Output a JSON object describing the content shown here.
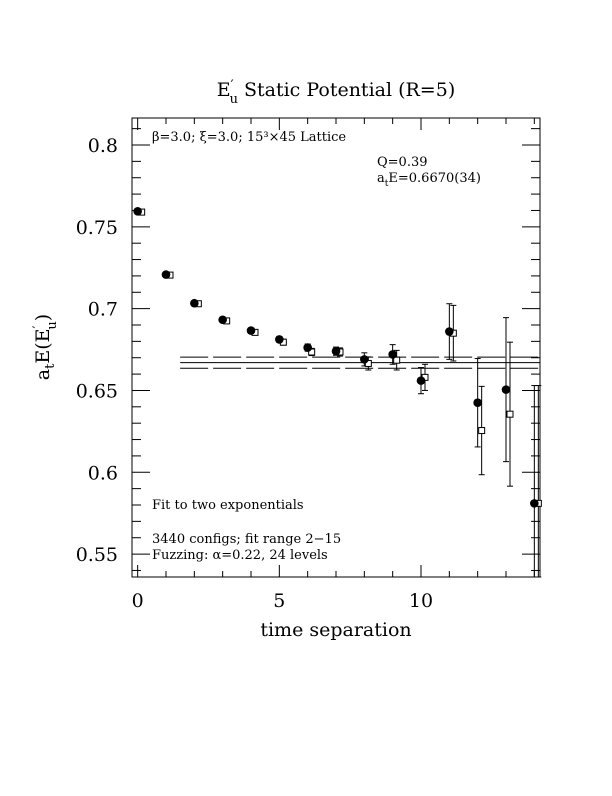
{
  "chart_data": {
    "type": "scatter",
    "title": {
      "main": "E",
      "sup": "′",
      "sub": "u",
      "rest": "  Static Potential (R=5)"
    },
    "xlabel": "time separation",
    "ylabel": {
      "base": "a",
      "sub_t": "t",
      "text": "E(E",
      "sup": "′",
      "sub_u": "u",
      "close": ")"
    },
    "xlim": [
      -0.2,
      14.2
    ],
    "ylim": [
      0.536,
      0.8165
    ],
    "x_ticks": [
      0,
      5,
      10
    ],
    "x_tick_labels": [
      "0",
      "5",
      "10"
    ],
    "y_ticks": [
      0.55,
      0.6,
      0.65,
      0.7,
      0.75,
      0.8
    ],
    "y_tick_labels": [
      "0.55",
      "0.6",
      "0.65",
      "0.7",
      "0.75",
      "0.8"
    ],
    "annotations": {
      "lattice": "β=3.0; ξ=3.0; 15³×45 Lattice",
      "q": "Q=0.39",
      "fit_result": {
        "base": "a",
        "sub": "t",
        "rest": "E=0.6670(34)"
      },
      "fit_type": "Fit to two exponentials",
      "configs": "3440 configs; fit range 2−15",
      "fuzzing": "Fuzzing: α=0.22, 24 levels"
    },
    "fit": {
      "central": 0.667,
      "error": 0.0034,
      "x_range": [
        1.5,
        14.2
      ]
    },
    "series": [
      {
        "marker": "filled-circle",
        "points": [
          {
            "x": 0,
            "y": 0.7595,
            "err": 0.001
          },
          {
            "x": 1,
            "y": 0.7208,
            "err": 0.001
          },
          {
            "x": 2,
            "y": 0.7033,
            "err": 0.001
          },
          {
            "x": 3,
            "y": 0.6932,
            "err": 0.0012
          },
          {
            "x": 4,
            "y": 0.6866,
            "err": 0.0015
          },
          {
            "x": 5,
            "y": 0.6812,
            "err": 0.0018
          },
          {
            "x": 6,
            "y": 0.6762,
            "err": 0.0022
          },
          {
            "x": 7,
            "y": 0.674,
            "err": 0.0025
          },
          {
            "x": 8,
            "y": 0.669,
            "err": 0.004
          },
          {
            "x": 9,
            "y": 0.672,
            "err": 0.006
          },
          {
            "x": 10,
            "y": 0.656,
            "err": 0.008
          },
          {
            "x": 11,
            "y": 0.686,
            "err": 0.017
          },
          {
            "x": 12,
            "y": 0.6425,
            "err": 0.027
          },
          {
            "x": 13,
            "y": 0.6505,
            "err": 0.044
          },
          {
            "x": 14,
            "y": 0.581,
            "err": 0.072
          }
        ]
      },
      {
        "marker": "open-square",
        "points": [
          {
            "x": 0,
            "y": 0.759,
            "err": 0.001
          },
          {
            "x": 1,
            "y": 0.7205,
            "err": 0.001
          },
          {
            "x": 2,
            "y": 0.703,
            "err": 0.001
          },
          {
            "x": 3,
            "y": 0.6925,
            "err": 0.0012
          },
          {
            "x": 4,
            "y": 0.6855,
            "err": 0.0015
          },
          {
            "x": 5,
            "y": 0.6795,
            "err": 0.0018
          },
          {
            "x": 6,
            "y": 0.6735,
            "err": 0.0022
          },
          {
            "x": 7,
            "y": 0.6735,
            "err": 0.0025
          },
          {
            "x": 8,
            "y": 0.6665,
            "err": 0.004
          },
          {
            "x": 9,
            "y": 0.6685,
            "err": 0.006
          },
          {
            "x": 10,
            "y": 0.658,
            "err": 0.008
          },
          {
            "x": 11,
            "y": 0.685,
            "err": 0.017
          },
          {
            "x": 12,
            "y": 0.6255,
            "err": 0.027
          },
          {
            "x": 13,
            "y": 0.6355,
            "err": 0.044
          },
          {
            "x": 14,
            "y": 0.581,
            "err": 0.072
          }
        ]
      }
    ]
  }
}
